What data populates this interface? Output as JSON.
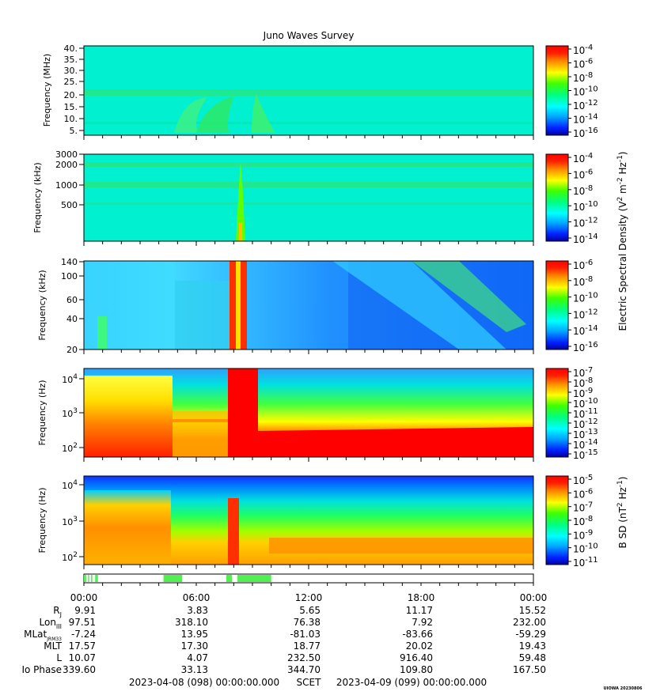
{
  "title": "Juno Waves Survey",
  "chart_data": [
    {
      "type": "heatmap",
      "ylabel": "Frequency (MHz)",
      "yticks": [
        "40.",
        "35.",
        "30.",
        "25.",
        "20.",
        "15.",
        "10.",
        "5."
      ],
      "ylim": [
        3.5,
        41
      ],
      "colorbar_ticks": [
        {
          "base": "10",
          "exp": "-4"
        },
        {
          "base": "10",
          "exp": "-6"
        },
        {
          "base": "10",
          "exp": "-8"
        },
        {
          "base": "10",
          "exp": "-10"
        },
        {
          "base": "10",
          "exp": "-12"
        },
        {
          "base": "10",
          "exp": "-14"
        },
        {
          "base": "10",
          "exp": "-16"
        }
      ]
    },
    {
      "type": "heatmap",
      "ylabel": "Frequency (kHz)",
      "yticks": [
        "3000",
        "2000",
        "1000",
        "500"
      ],
      "scale": "log",
      "colorbar_ticks": [
        {
          "base": "10",
          "exp": "-4"
        },
        {
          "base": "10",
          "exp": "-6"
        },
        {
          "base": "10",
          "exp": "-8"
        },
        {
          "base": "10",
          "exp": "-10"
        },
        {
          "base": "10",
          "exp": "-12"
        },
        {
          "base": "10",
          "exp": "-14"
        }
      ]
    },
    {
      "type": "heatmap",
      "ylabel": "Frequency (kHz)",
      "yticks": [
        "140",
        "100",
        "60",
        "40",
        "20"
      ],
      "scale": "log",
      "colorbar_ticks": [
        {
          "base": "10",
          "exp": "-6"
        },
        {
          "base": "10",
          "exp": "-8"
        },
        {
          "base": "10",
          "exp": "-10"
        },
        {
          "base": "10",
          "exp": "-12"
        },
        {
          "base": "10",
          "exp": "-14"
        },
        {
          "base": "10",
          "exp": "-16"
        }
      ]
    },
    {
      "type": "heatmap",
      "ylabel": "Frequency (Hz)",
      "yticks": [
        {
          "base": "10",
          "exp": "4"
        },
        {
          "base": "10",
          "exp": "3"
        },
        {
          "base": "10",
          "exp": "2"
        }
      ],
      "scale": "log",
      "colorbar_ticks": [
        {
          "base": "10",
          "exp": "-7"
        },
        {
          "base": "10",
          "exp": "-8"
        },
        {
          "base": "10",
          "exp": "-9"
        },
        {
          "base": "10",
          "exp": "-10"
        },
        {
          "base": "10",
          "exp": "-11"
        },
        {
          "base": "10",
          "exp": "-12"
        },
        {
          "base": "10",
          "exp": "-13"
        },
        {
          "base": "10",
          "exp": "-14"
        },
        {
          "base": "10",
          "exp": "-15"
        }
      ]
    },
    {
      "type": "heatmap",
      "ylabel": "Frequency (Hz)",
      "yticks": [
        {
          "base": "10",
          "exp": "4"
        },
        {
          "base": "10",
          "exp": "3"
        },
        {
          "base": "10",
          "exp": "2"
        }
      ],
      "scale": "log",
      "colorbar_ticks": [
        {
          "base": "10",
          "exp": "-5"
        },
        {
          "base": "10",
          "exp": "-6"
        },
        {
          "base": "10",
          "exp": "-7"
        },
        {
          "base": "10",
          "exp": "-8"
        },
        {
          "base": "10",
          "exp": "-9"
        },
        {
          "base": "10",
          "exp": "-10"
        },
        {
          "base": "10",
          "exp": "-11"
        }
      ]
    }
  ],
  "colorbar_label_e": "Electric Spectral Density (V² m⁻² Hz⁻¹)",
  "colorbar_label_b": "B SD (nT² Hz⁻¹)",
  "colorbar_label_e_parts": [
    "Electric Spectral Density (V",
    "2",
    " m",
    "-2",
    " Hz",
    "-1",
    ")"
  ],
  "colorbar_label_b_parts": [
    "B SD (nT",
    "2",
    " Hz",
    "-1",
    ")"
  ],
  "mode_bar_segments_hours": [
    [
      0.0,
      0.12
    ],
    [
      0.22,
      0.28
    ],
    [
      0.38,
      0.45
    ],
    [
      0.6,
      0.75
    ],
    [
      4.25,
      5.25
    ],
    [
      7.6,
      7.9
    ],
    [
      8.2,
      10.0
    ]
  ],
  "time_ticks": [
    "00:00",
    "06:00",
    "12:00",
    "18:00",
    "00:00"
  ],
  "ephemeris": [
    {
      "label": "R",
      "sub": "J",
      "values": [
        "9.91",
        "3.83",
        "5.65",
        "11.17",
        "15.52"
      ]
    },
    {
      "label": "Lon",
      "sub": "III",
      "values": [
        "97.51",
        "318.10",
        "76.38",
        "7.92",
        "232.00"
      ]
    },
    {
      "label": "MLat",
      "sub": "JRM33",
      "values": [
        "-7.24",
        "13.95",
        "-81.03",
        "-83.66",
        "-59.29"
      ]
    },
    {
      "label": "MLT",
      "sub": "",
      "values": [
        "17.57",
        "17.30",
        "18.77",
        "20.02",
        "19.43"
      ]
    },
    {
      "label": "L",
      "sub": "",
      "values": [
        "10.07",
        "4.07",
        "232.50",
        "916.40",
        "59.48"
      ]
    },
    {
      "label": "Io Phase",
      "sub": "",
      "values": [
        "339.60",
        "33.13",
        "344.70",
        "109.80",
        "167.50"
      ]
    }
  ],
  "footer": {
    "start": "2023-04-08 (098) 00:00:00.000",
    "middle": "SCET",
    "end": "2023-04-09 (099) 00:00:00.000"
  },
  "stamp": "UIOWA 20230806"
}
